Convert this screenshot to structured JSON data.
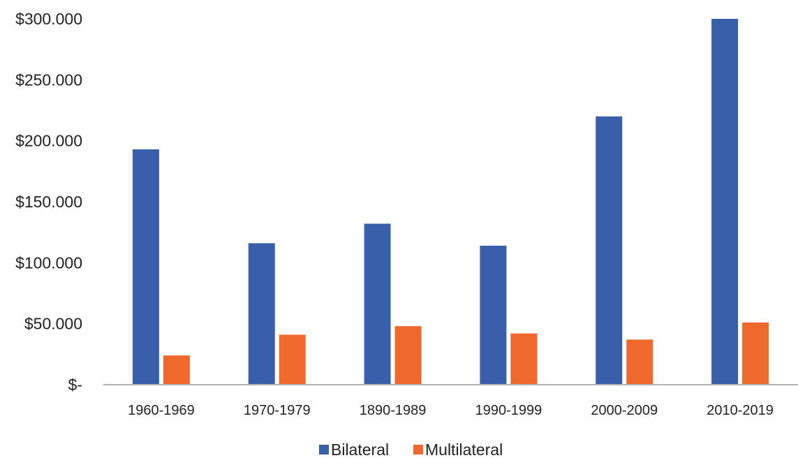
{
  "chart_data": {
    "type": "bar",
    "title": "",
    "xlabel": "",
    "ylabel": "",
    "categories": [
      "1960-1969",
      "1970-1979",
      "1890-1989",
      "1990-1999",
      "2000-2009",
      "2010-2019"
    ],
    "series": [
      {
        "name": "Bilateral",
        "color": "#3a5faa",
        "values": [
          193,
          116,
          132,
          114,
          220,
          300
        ]
      },
      {
        "name": "Multilateral",
        "color": "#f0692c",
        "values": [
          24,
          41,
          48,
          42,
          37,
          51
        ]
      }
    ],
    "ylim": [
      0,
      300
    ],
    "yticks": [
      {
        "value": 0,
        "label": "$-"
      },
      {
        "value": 50,
        "label": "$50.000"
      },
      {
        "value": 100,
        "label": "$100.000"
      },
      {
        "value": 150,
        "label": "$150.000"
      },
      {
        "value": 200,
        "label": "$200.000"
      },
      {
        "value": 250,
        "label": "$250.000"
      },
      {
        "value": 300,
        "label": "$300.000"
      }
    ],
    "grid": false,
    "legend_position": "bottom-center",
    "axis_color": "#b3b3b3"
  }
}
